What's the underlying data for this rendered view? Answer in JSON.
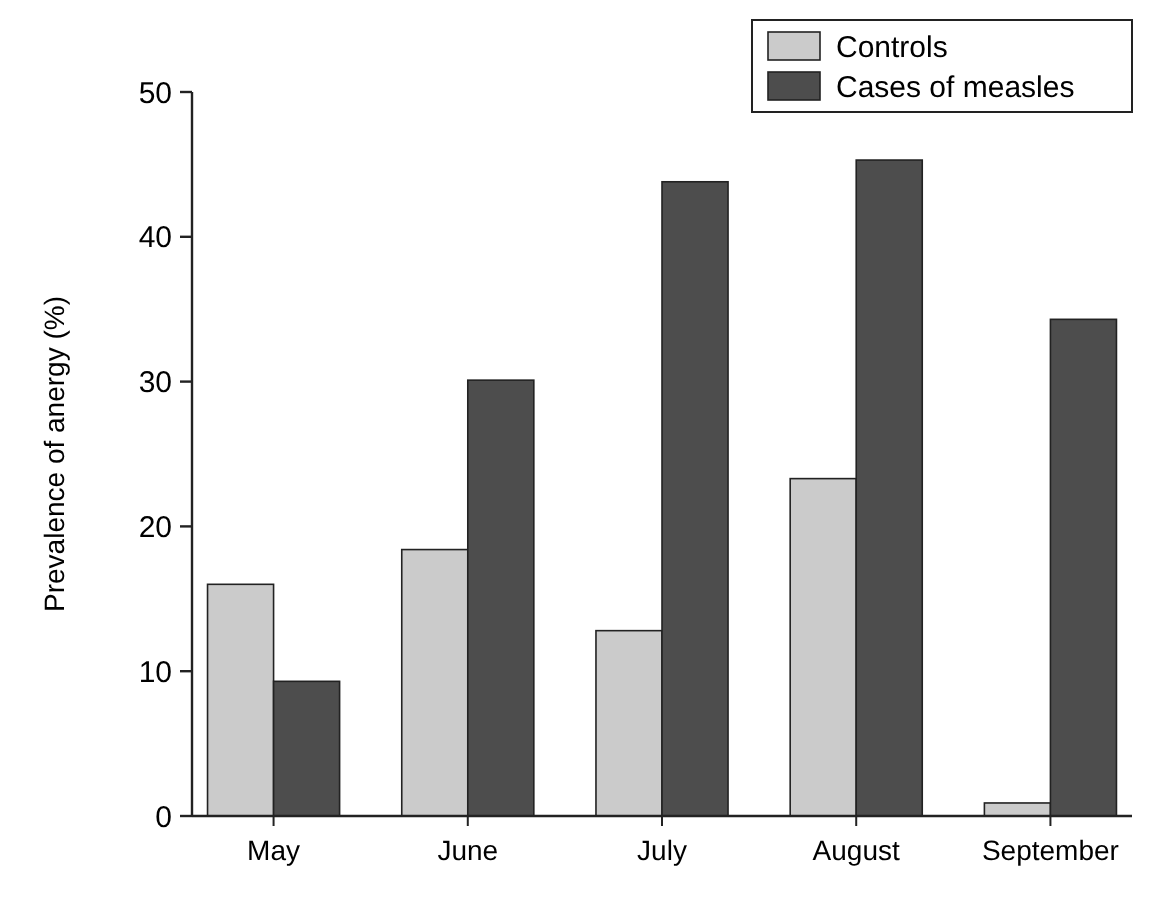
{
  "chart_data": {
    "type": "bar",
    "ylabel": "Prevalence of anergy (%)",
    "categories": [
      "May",
      "June",
      "July",
      "August",
      "September"
    ],
    "series": [
      {
        "name": "Controls",
        "color": "#cbcbcb",
        "values": [
          16,
          18.4,
          12.8,
          23.3,
          0.9
        ]
      },
      {
        "name": "Cases of measles",
        "color": "#4d4d4d",
        "values": [
          9.3,
          30.1,
          43.8,
          45.3,
          34.3
        ]
      }
    ],
    "ylim": [
      0,
      50
    ],
    "yticks": [
      0,
      10,
      20,
      30,
      40,
      50
    ],
    "grid": false,
    "legend": "top right"
  }
}
